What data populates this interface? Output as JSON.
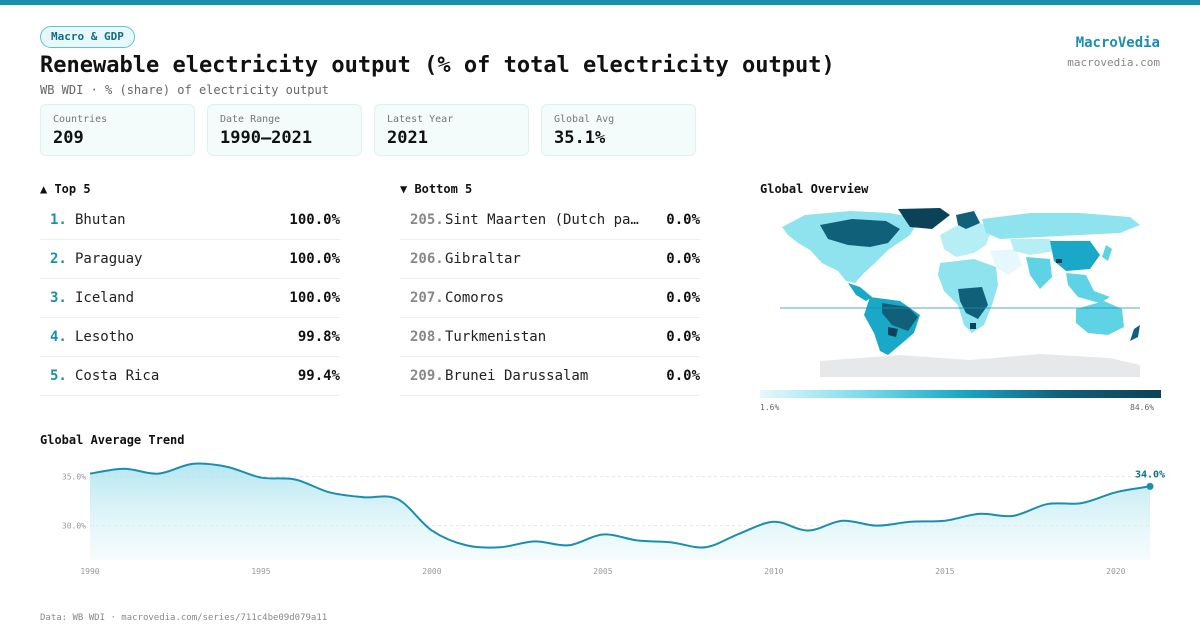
{
  "header": {
    "badge": "Macro & GDP",
    "title": "Renewable electricity output (% of total electricity output)",
    "subtitle": "WB WDI · % (share) of electricity output",
    "brand": "MacroVedia",
    "brand_url": "macrovedia.com"
  },
  "stats": [
    {
      "label": "Countries",
      "value": "209"
    },
    {
      "label": "Date Range",
      "value": "1990–2021"
    },
    {
      "label": "Latest Year",
      "value": "2021"
    },
    {
      "label": "Global Avg",
      "value": "35.1%"
    }
  ],
  "top5": {
    "heading": "▲ Top 5",
    "items": [
      {
        "rank": "1.",
        "name": "Bhutan",
        "value": "100.0%"
      },
      {
        "rank": "2.",
        "name": "Paraguay",
        "value": "100.0%"
      },
      {
        "rank": "3.",
        "name": "Iceland",
        "value": "100.0%"
      },
      {
        "rank": "4.",
        "name": "Lesotho",
        "value": "99.8%"
      },
      {
        "rank": "5.",
        "name": "Costa Rica",
        "value": "99.4%"
      }
    ]
  },
  "bottom5": {
    "heading": "▼ Bottom 5",
    "items": [
      {
        "rank": "205.",
        "name": "Sint Maarten (Dutch pa…",
        "value": "0.0%"
      },
      {
        "rank": "206.",
        "name": "Gibraltar",
        "value": "0.0%"
      },
      {
        "rank": "207.",
        "name": "Comoros",
        "value": "0.0%"
      },
      {
        "rank": "208.",
        "name": "Turkmenistan",
        "value": "0.0%"
      },
      {
        "rank": "209.",
        "name": "Brunei Darussalam",
        "value": "0.0%"
      }
    ]
  },
  "map": {
    "heading": "Global Overview",
    "legend_min": "1.6%",
    "legend_max": "84.6%",
    "colors": {
      "low": "#e6f8fb",
      "mid": "#1aa8c8",
      "high": "#0b4257",
      "nodata": "#e6e8ea"
    }
  },
  "trend": {
    "heading": "Global Average Trend",
    "end_label": "34.0%",
    "line_color": "#1a8fad"
  },
  "footer": "Data: WB WDI · macrovedia.com/series/711c4be09d079a11",
  "chart_data": {
    "type": "area",
    "x": [
      1990,
      1991,
      1992,
      1993,
      1994,
      1995,
      1996,
      1997,
      1998,
      1999,
      2000,
      2001,
      2002,
      2003,
      2004,
      2005,
      2006,
      2007,
      2008,
      2009,
      2010,
      2011,
      2012,
      2013,
      2014,
      2015,
      2016,
      2017,
      2018,
      2019,
      2020,
      2021
    ],
    "values": [
      35.3,
      35.8,
      35.3,
      36.3,
      36.0,
      34.9,
      34.7,
      33.4,
      32.9,
      32.7,
      29.5,
      28.0,
      27.8,
      28.4,
      28.0,
      29.1,
      28.5,
      28.3,
      27.8,
      29.2,
      30.4,
      29.5,
      30.5,
      30.0,
      30.4,
      30.5,
      31.2,
      31.0,
      32.2,
      32.3,
      33.4,
      34.0
    ],
    "yticks": [
      "30.0%",
      "35.0%"
    ],
    "ytick_values": [
      30,
      35
    ],
    "xticks": [
      "1990",
      "1995",
      "2000",
      "2005",
      "2010",
      "2015",
      "2020"
    ],
    "ylim": [
      26.5,
      37.2
    ],
    "grid": true
  }
}
